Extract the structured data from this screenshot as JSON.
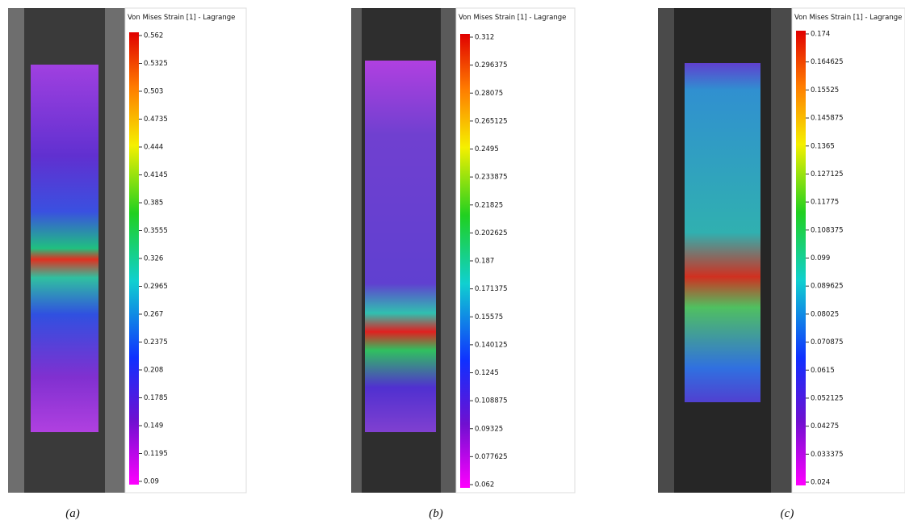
{
  "panels": [
    {
      "legend_title": "Von Mises Strain [1] - Lagrange",
      "ticks": [
        "0.562",
        "0.5325",
        "0.503",
        "0.4735",
        "0.444",
        "0.4145",
        "0.385",
        "0.3555",
        "0.326",
        "0.2965",
        "0.267",
        "0.2375",
        "0.208",
        "0.1785",
        "0.149",
        "0.1195",
        "0.09"
      ],
      "caption": "(a)"
    },
    {
      "legend_title": "Von Mises Strain [1] - Lagrange",
      "ticks": [
        "0.312",
        "0.296375",
        "0.28075",
        "0.265125",
        "0.2495",
        "0.233875",
        "0.21825",
        "0.202625",
        "0.187",
        "0.171375",
        "0.15575",
        "0.140125",
        "0.1245",
        "0.108875",
        "0.09325",
        "0.077625",
        "0.062"
      ],
      "caption": "(b)"
    },
    {
      "legend_title": "Von Mises Strain [1] - Lagrange",
      "ticks": [
        "0.174",
        "0.164625",
        "0.15525",
        "0.145875",
        "0.1365",
        "0.127125",
        "0.11775",
        "0.108375",
        "0.099",
        "0.089625",
        "0.08025",
        "0.070875",
        "0.0615",
        "0.052125",
        "0.04275",
        "0.033375",
        "0.024"
      ],
      "caption": "(c)"
    }
  ]
}
